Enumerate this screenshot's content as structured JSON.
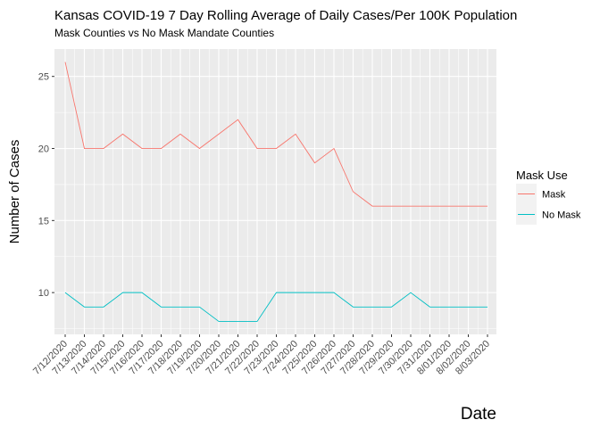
{
  "chart_data": {
    "type": "line",
    "title": "Kansas COVID-19 7 Day Rolling Average of Daily Cases/Per 100K Population",
    "subtitle": "Mask Counties vs No Mask Mandate Counties",
    "xlabel": "Date",
    "ylabel": "Number of Cases",
    "categories": [
      "7/12/2020",
      "7/13/2020",
      "7/14/2020",
      "7/15/2020",
      "7/16/2020",
      "7/17/2020",
      "7/18/2020",
      "7/19/2020",
      "7/20/2020",
      "7/21/2020",
      "7/22/2020",
      "7/23/2020",
      "7/24/2020",
      "7/25/2020",
      "7/26/2020",
      "7/27/2020",
      "7/28/2020",
      "7/29/2020",
      "7/30/2020",
      "7/31/2020",
      "8/01/2020",
      "8/02/2020",
      "8/03/2020"
    ],
    "series": [
      {
        "name": "Mask",
        "color": "#F8766D",
        "values": [
          26,
          20,
          20,
          21,
          20,
          20,
          21,
          20,
          21,
          22,
          20,
          20,
          21,
          19,
          20,
          17,
          16,
          16,
          16,
          16,
          16,
          16,
          16
        ]
      },
      {
        "name": "No Mask",
        "color": "#00BFC4",
        "values": [
          10,
          9,
          9,
          10,
          10,
          9,
          9,
          9,
          8,
          8,
          8,
          10,
          10,
          10,
          10,
          9,
          9,
          9,
          10,
          9,
          9,
          9,
          9
        ]
      }
    ],
    "yticks": [
      10,
      15,
      20,
      25
    ],
    "ylim": [
      7.1,
      26.9
    ],
    "grid": true,
    "legend": {
      "title": "Mask Use",
      "position": "right"
    },
    "panel_color": "#EBEBEB"
  }
}
